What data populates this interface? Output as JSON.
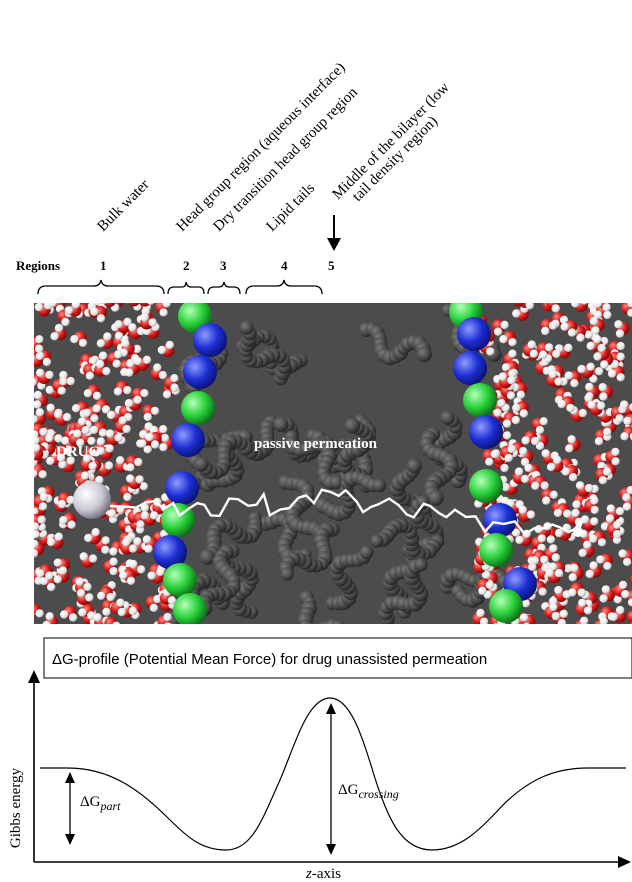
{
  "header": {
    "region_descriptions": [
      "Bulk water",
      "Head group region (aqueous interface)",
      "Dry transition head group region",
      "Lipid tails",
      "Middle of the bilayer (low",
      "tail density region)"
    ],
    "regions_label": "Regions",
    "region_numbers": [
      "1",
      "2",
      "3",
      "4",
      "5"
    ]
  },
  "simulation": {
    "drug_label": "DRUG",
    "path_label": "passive permeation",
    "colors": {
      "water_red": "#d81a1a",
      "water_white": "#f2f2f2",
      "head_blue": "#1d2fd4",
      "head_green": "#29d13a",
      "tails_gray": "#3a3a3a",
      "background": "#4a4a4a"
    }
  },
  "profile": {
    "title": "ΔG-profile (Potential Mean Force) for drug unassisted permeation",
    "y_axis_label": "Gibbs energy",
    "x_axis_label_italic": "z",
    "x_axis_label_rest": "-axis",
    "dg_part_symbol": "ΔG",
    "dg_part_sub": "part",
    "dg_crossing_symbol": "ΔG",
    "dg_crossing_sub": "crossing"
  }
}
